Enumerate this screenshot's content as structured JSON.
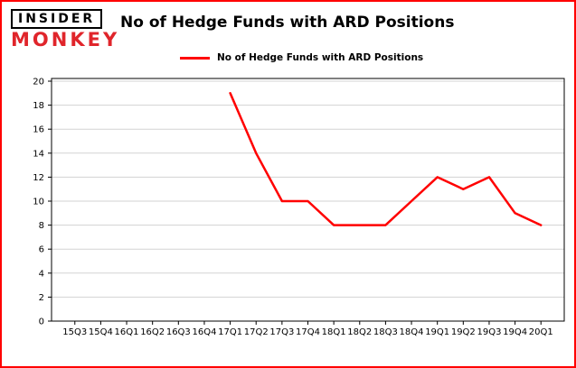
{
  "frame": {
    "border_color": "#ff0000",
    "background": "#ffffff"
  },
  "header": {
    "logo": {
      "line1": "INSIDER",
      "line2": "MONKEY",
      "monkey_color": "#e0252b"
    },
    "title": "No of Hedge Funds with ARD Positions"
  },
  "legend": {
    "label": "No of Hedge Funds with ARD Positions",
    "line_color": "#ff0000"
  },
  "chart_data": {
    "type": "line",
    "title": "No of Hedge Funds with ARD Positions",
    "categories": [
      "15Q3",
      "15Q4",
      "16Q1",
      "16Q2",
      "16Q3",
      "16Q4",
      "17Q1",
      "17Q2",
      "17Q3",
      "17Q4",
      "18Q1",
      "18Q2",
      "18Q3",
      "18Q4",
      "19Q1",
      "19Q2",
      "19Q3",
      "19Q4",
      "20Q1"
    ],
    "series": [
      {
        "name": "No of Hedge Funds with ARD Positions",
        "color": "#ff0000",
        "values": [
          null,
          null,
          null,
          null,
          null,
          null,
          19,
          14,
          10,
          10,
          8,
          8,
          8,
          10,
          12,
          11,
          12,
          9,
          8
        ]
      }
    ],
    "xlabel": "",
    "ylabel": "",
    "ylim": [
      0,
      20
    ],
    "yticks": [
      0,
      2,
      4,
      6,
      8,
      10,
      12,
      14,
      16,
      18,
      20
    ],
    "grid": "horizontal",
    "gridline_color": "#d3d3d3",
    "axis_color": "#000000",
    "legend_position": "top"
  }
}
